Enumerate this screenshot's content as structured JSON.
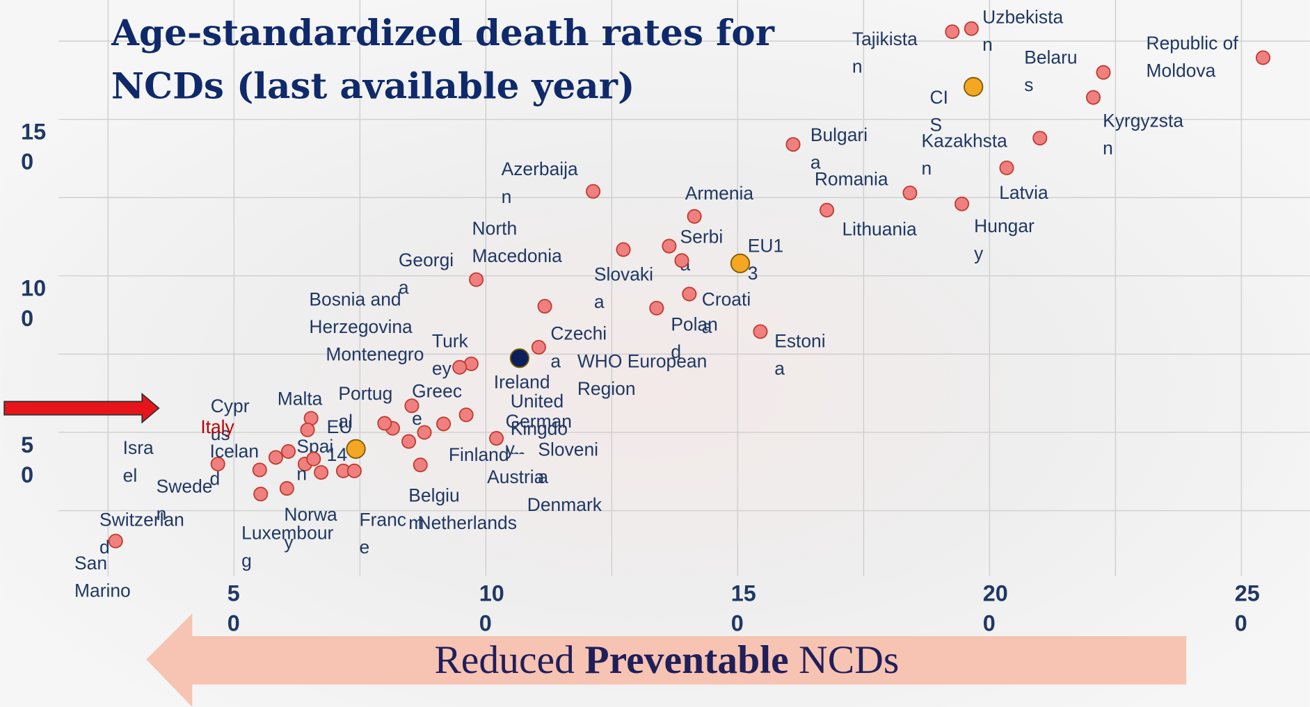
{
  "chart_data": {
    "type": "scatter",
    "title": "Age-standardized death rates for NCDs (last available year)",
    "footer": [
      "Reduced ",
      "Preventable",
      " NCDs"
    ],
    "xlim": [
      0,
      260
    ],
    "ylim": [
      0,
      188
    ],
    "xticks": [
      50,
      100,
      150,
      200,
      250
    ],
    "yticks": [
      50,
      100,
      150
    ],
    "minor_xticks": [
      25,
      75,
      125,
      175,
      225
    ],
    "minor_yticks": [
      25,
      75,
      125,
      175
    ],
    "grid": true,
    "series": [
      {
        "color": "#f08080",
        "label_color": "#1f3864",
        "labels": [
          "Tajikistan",
          "Uzbekistan",
          "Republic of Moldova",
          "Belarus",
          "Kyrgyzstan",
          "Kazakhstan",
          "Latvia",
          "Bulgaria",
          "Romania",
          "Hungary",
          "Lithuania",
          "Azerbaijan",
          "North Macedonia",
          "Armenia",
          "Serbia",
          "Slovakia",
          "Georgia",
          "Croatia",
          "Bosnia and Herzegovina",
          "Poland",
          "Estonia",
          "Czechia",
          "Turkey",
          "Montenegro",
          "Greece",
          "Ireland",
          "Portugal",
          "Malta",
          "Cyprus",
          "Israel",
          "Sweden",
          "Switzerland",
          "Luxembourg",
          "Iceland",
          "Spain",
          "Norway",
          "France",
          "Netherlands",
          "Belgium",
          "Finland",
          "Austria",
          "Denmark",
          "United Kingdom",
          "Germany",
          "Slovenia",
          "San Marino"
        ],
        "x": [
          192.6,
          196.4,
          254.3,
          222.6,
          220.6,
          210,
          203.4,
          161,
          184.2,
          194.5,
          167.7,
          121.3,
          127.3,
          141.4,
          136.4,
          138.9,
          98.1,
          140.4,
          111.7,
          133.9,
          154.5,
          110.5,
          97.1,
          94.8,
          85.3,
          81.5,
          79.9,
          65.3,
          64.6,
          46.8,
          55.1,
          55.3,
          60.5,
          58.3,
          64.1,
          65.8,
          67.3,
          71.7,
          73.9,
          84.7,
          87.8,
          87,
          91.6,
          96.1,
          102.1,
          26.5
        ],
        "values": [
          178,
          179,
          169.7,
          165,
          157,
          144,
          134.5,
          142,
          126.5,
          123,
          121,
          127,
          108.4,
          119,
          109.5,
          104.9,
          98.8,
          94.2,
          90.3,
          89.7,
          82.2,
          77.2,
          71.9,
          70.8,
          58.5,
          51.3,
          52.9,
          54.5,
          50.8,
          39.9,
          38,
          30.3,
          32.1,
          42,
          39.9,
          41.5,
          37.2,
          37.7,
          37.7,
          47.1,
          50,
          39.6,
          52.7,
          55.6,
          48.1,
          15.3
        ]
      },
      {
        "color": "#f08080",
        "label_color": "#c00000",
        "labels": [
          "Italy"
        ],
        "x": [
          60.8
        ],
        "values": [
          43.9
        ]
      },
      {
        "color": "#f5a623",
        "label_color": "#1f3864",
        "labels": [
          "CIS",
          "EU13",
          "EU14"
        ],
        "x": [
          196.8,
          150.5,
          74.2
        ],
        "values": [
          160.4,
          104,
          44.7
        ]
      },
      {
        "color": "#0a1f5c",
        "label_color": "#1f3864",
        "labels": [
          "WHO European Region"
        ],
        "x": [
          106.7
        ],
        "values": [
          73.7
        ]
      }
    ]
  }
}
